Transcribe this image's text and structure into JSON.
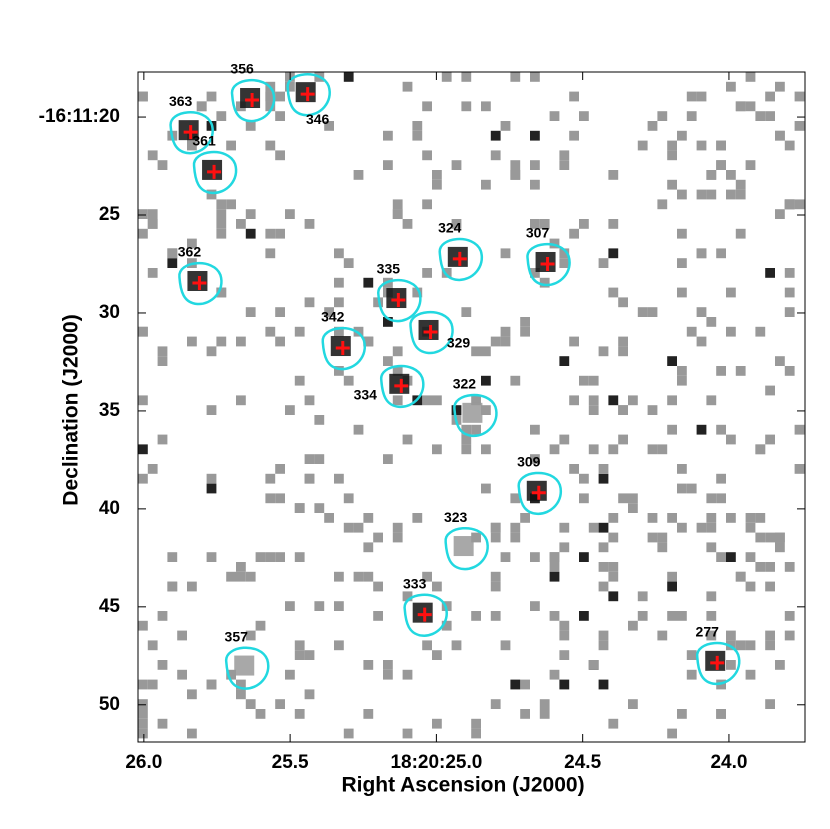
{
  "chart_data": {
    "type": "scatter",
    "x_label": "Right Ascension (J2000)",
    "y_label": "Declination (J2000)",
    "xlim": [
      26.02,
      23.74
    ],
    "ylim": [
      17.7,
      51.9
    ],
    "xticks": [
      {
        "value": 26,
        "label": "26.0"
      },
      25.5,
      {
        "value": 25,
        "label": "18:20:25.0"
      },
      24.5,
      {
        "value": 24,
        "label": "24.0"
      }
    ],
    "yticks": [
      {
        "value": 20,
        "label": "-16:11:20"
      },
      25,
      30,
      35,
      40,
      45,
      50
    ],
    "contour_color": "#22d8e0",
    "cross_color": "#ff1010",
    "sources": {
      "labels": [
        "363",
        "356",
        "346",
        "361",
        "362",
        "324",
        "307",
        "335",
        "329",
        "342",
        "334",
        "322",
        "309",
        "323",
        "333",
        "357",
        "277"
      ],
      "x": [
        25.84,
        25.63,
        25.44,
        25.76,
        25.81,
        24.92,
        24.62,
        25.13,
        25.02,
        25.32,
        25.12,
        24.87,
        24.65,
        24.9,
        25.04,
        25.65,
        24.04
      ],
      "y": [
        20.77,
        19.13,
        18.83,
        22.8,
        28.47,
        27.24,
        27.5,
        29.34,
        30.97,
        31.79,
        33.72,
        35.2,
        39.18,
        42.0,
        45.4,
        48.1,
        47.86
      ],
      "cross": [
        true,
        true,
        true,
        true,
        true,
        true,
        true,
        true,
        true,
        true,
        true,
        false,
        true,
        false,
        true,
        false,
        true
      ]
    }
  }
}
